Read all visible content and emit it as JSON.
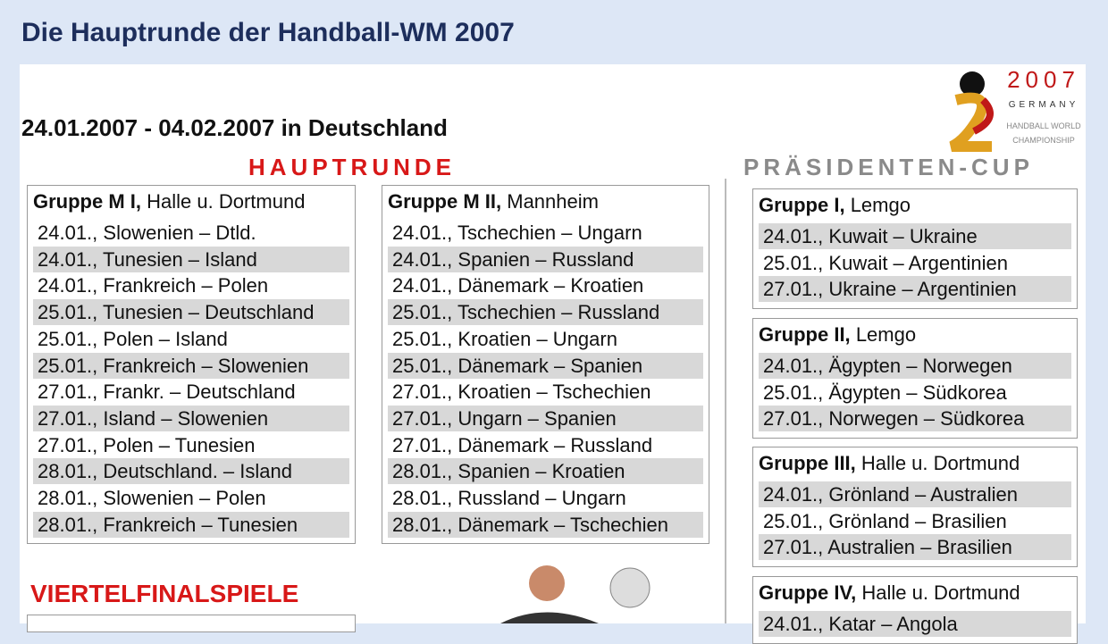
{
  "header": {
    "title": "Die Hauptrunde der Handball-WM 2007"
  },
  "subtitle": "24.01.2007 - 04.02.2007 in Deutschland",
  "logo": {
    "year": "2007",
    "country": "GERMANY",
    "line1": "HANDBALL WORLD",
    "line2": "CHAMPIONSHIP"
  },
  "main_round": {
    "heading": "HAUPTRUNDE",
    "groups": [
      {
        "name": "Gruppe M I,",
        "location": "Halle u. Dortmund",
        "matches": [
          {
            "date": "24.01.,",
            "teams": "Slowenien – Dtld."
          },
          {
            "date": "24.01.,",
            "teams": "Tunesien – Island"
          },
          {
            "date": "24.01.,",
            "teams": "Frankreich – Polen"
          },
          {
            "date": "25.01.,",
            "teams": "Tunesien – Deutschland"
          },
          {
            "date": "25.01.,",
            "teams": "Polen – Island"
          },
          {
            "date": "25.01.,",
            "teams": "Frankreich – Slowenien"
          },
          {
            "date": "27.01.,",
            "teams": "Frankr. – Deutschland"
          },
          {
            "date": "27.01.,",
            "teams": "Island – Slowenien"
          },
          {
            "date": "27.01.,",
            "teams": "Polen – Tunesien"
          },
          {
            "date": "28.01.,",
            "teams": "Deutschland. – Island"
          },
          {
            "date": "28.01.,",
            "teams": "Slowenien – Polen"
          },
          {
            "date": "28.01.,",
            "teams": "Frankreich – Tunesien"
          }
        ]
      },
      {
        "name": "Gruppe M II,",
        "location": "Mannheim",
        "matches": [
          {
            "date": "24.01.,",
            "teams": "Tschechien – Ungarn"
          },
          {
            "date": "24.01.,",
            "teams": "Spanien – Russland"
          },
          {
            "date": "24.01.,",
            "teams": "Dänemark – Kroatien"
          },
          {
            "date": "25.01.,",
            "teams": "Tschechien – Russland"
          },
          {
            "date": "25.01.,",
            "teams": "Kroatien – Ungarn"
          },
          {
            "date": "25.01.,",
            "teams": "Dänemark – Spanien"
          },
          {
            "date": "27.01.,",
            "teams": "Kroatien – Tschechien"
          },
          {
            "date": "27.01.,",
            "teams": "Ungarn – Spanien"
          },
          {
            "date": "27.01.,",
            "teams": "Dänemark – Russland"
          },
          {
            "date": "28.01.,",
            "teams": "Spanien – Kroatien"
          },
          {
            "date": "28.01.,",
            "teams": "Russland – Ungarn"
          },
          {
            "date": "28.01.,",
            "teams": "Dänemark – Tschechien"
          }
        ]
      }
    ]
  },
  "presidents_cup": {
    "heading": "PRÄSIDENTEN-CUP",
    "groups": [
      {
        "name": "Gruppe I,",
        "location": "Lemgo",
        "matches": [
          {
            "date": "24.01.,",
            "teams": "Kuwait – Ukraine"
          },
          {
            "date": "25.01.,",
            "teams": "Kuwait – Argentinien"
          },
          {
            "date": "27.01.,",
            "teams": "Ukraine – Argentinien"
          }
        ]
      },
      {
        "name": "Gruppe II,",
        "location": "Lemgo",
        "matches": [
          {
            "date": "24.01.,",
            "teams": "Ägypten – Norwegen"
          },
          {
            "date": "25.01.,",
            "teams": "Ägypten – Südkorea"
          },
          {
            "date": "27.01.,",
            "teams": "Norwegen – Südkorea"
          }
        ]
      },
      {
        "name": "Gruppe III,",
        "location": "Halle u. Dortmund",
        "matches": [
          {
            "date": "24.01.,",
            "teams": "Grönland – Australien"
          },
          {
            "date": "25.01.,",
            "teams": "Grönland – Brasilien"
          },
          {
            "date": "27.01.,",
            "teams": "Australien – Brasilien"
          }
        ]
      },
      {
        "name": "Gruppe IV,",
        "location": "Halle u. Dortmund",
        "matches": [
          {
            "date": "24.01.,",
            "teams": "Katar – Angola"
          }
        ]
      }
    ]
  },
  "quarterfinals": {
    "heading": "VIERTELFINALSPIELE"
  }
}
